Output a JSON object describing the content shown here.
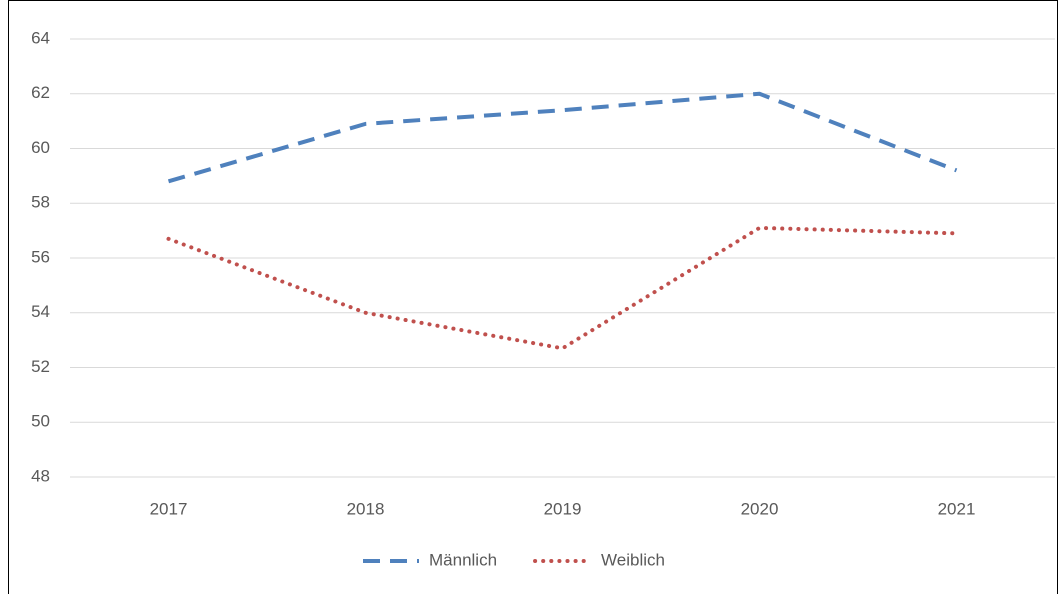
{
  "chart_data": {
    "type": "line",
    "categories": [
      "2017",
      "2018",
      "2019",
      "2020",
      "2021"
    ],
    "series": [
      {
        "name": "Männlich",
        "color": "#4f81bd",
        "style": "dashed",
        "values": [
          58.8,
          60.9,
          61.4,
          62.0,
          59.2
        ]
      },
      {
        "name": "Weiblich",
        "color": "#c0504d",
        "style": "dotted",
        "values": [
          56.7,
          54.0,
          52.7,
          57.1,
          56.9
        ]
      }
    ],
    "ylim": [
      48,
      64
    ],
    "yticks": [
      48,
      50,
      52,
      54,
      56,
      58,
      60,
      62,
      64
    ],
    "grid": true,
    "legend": "bottom"
  }
}
